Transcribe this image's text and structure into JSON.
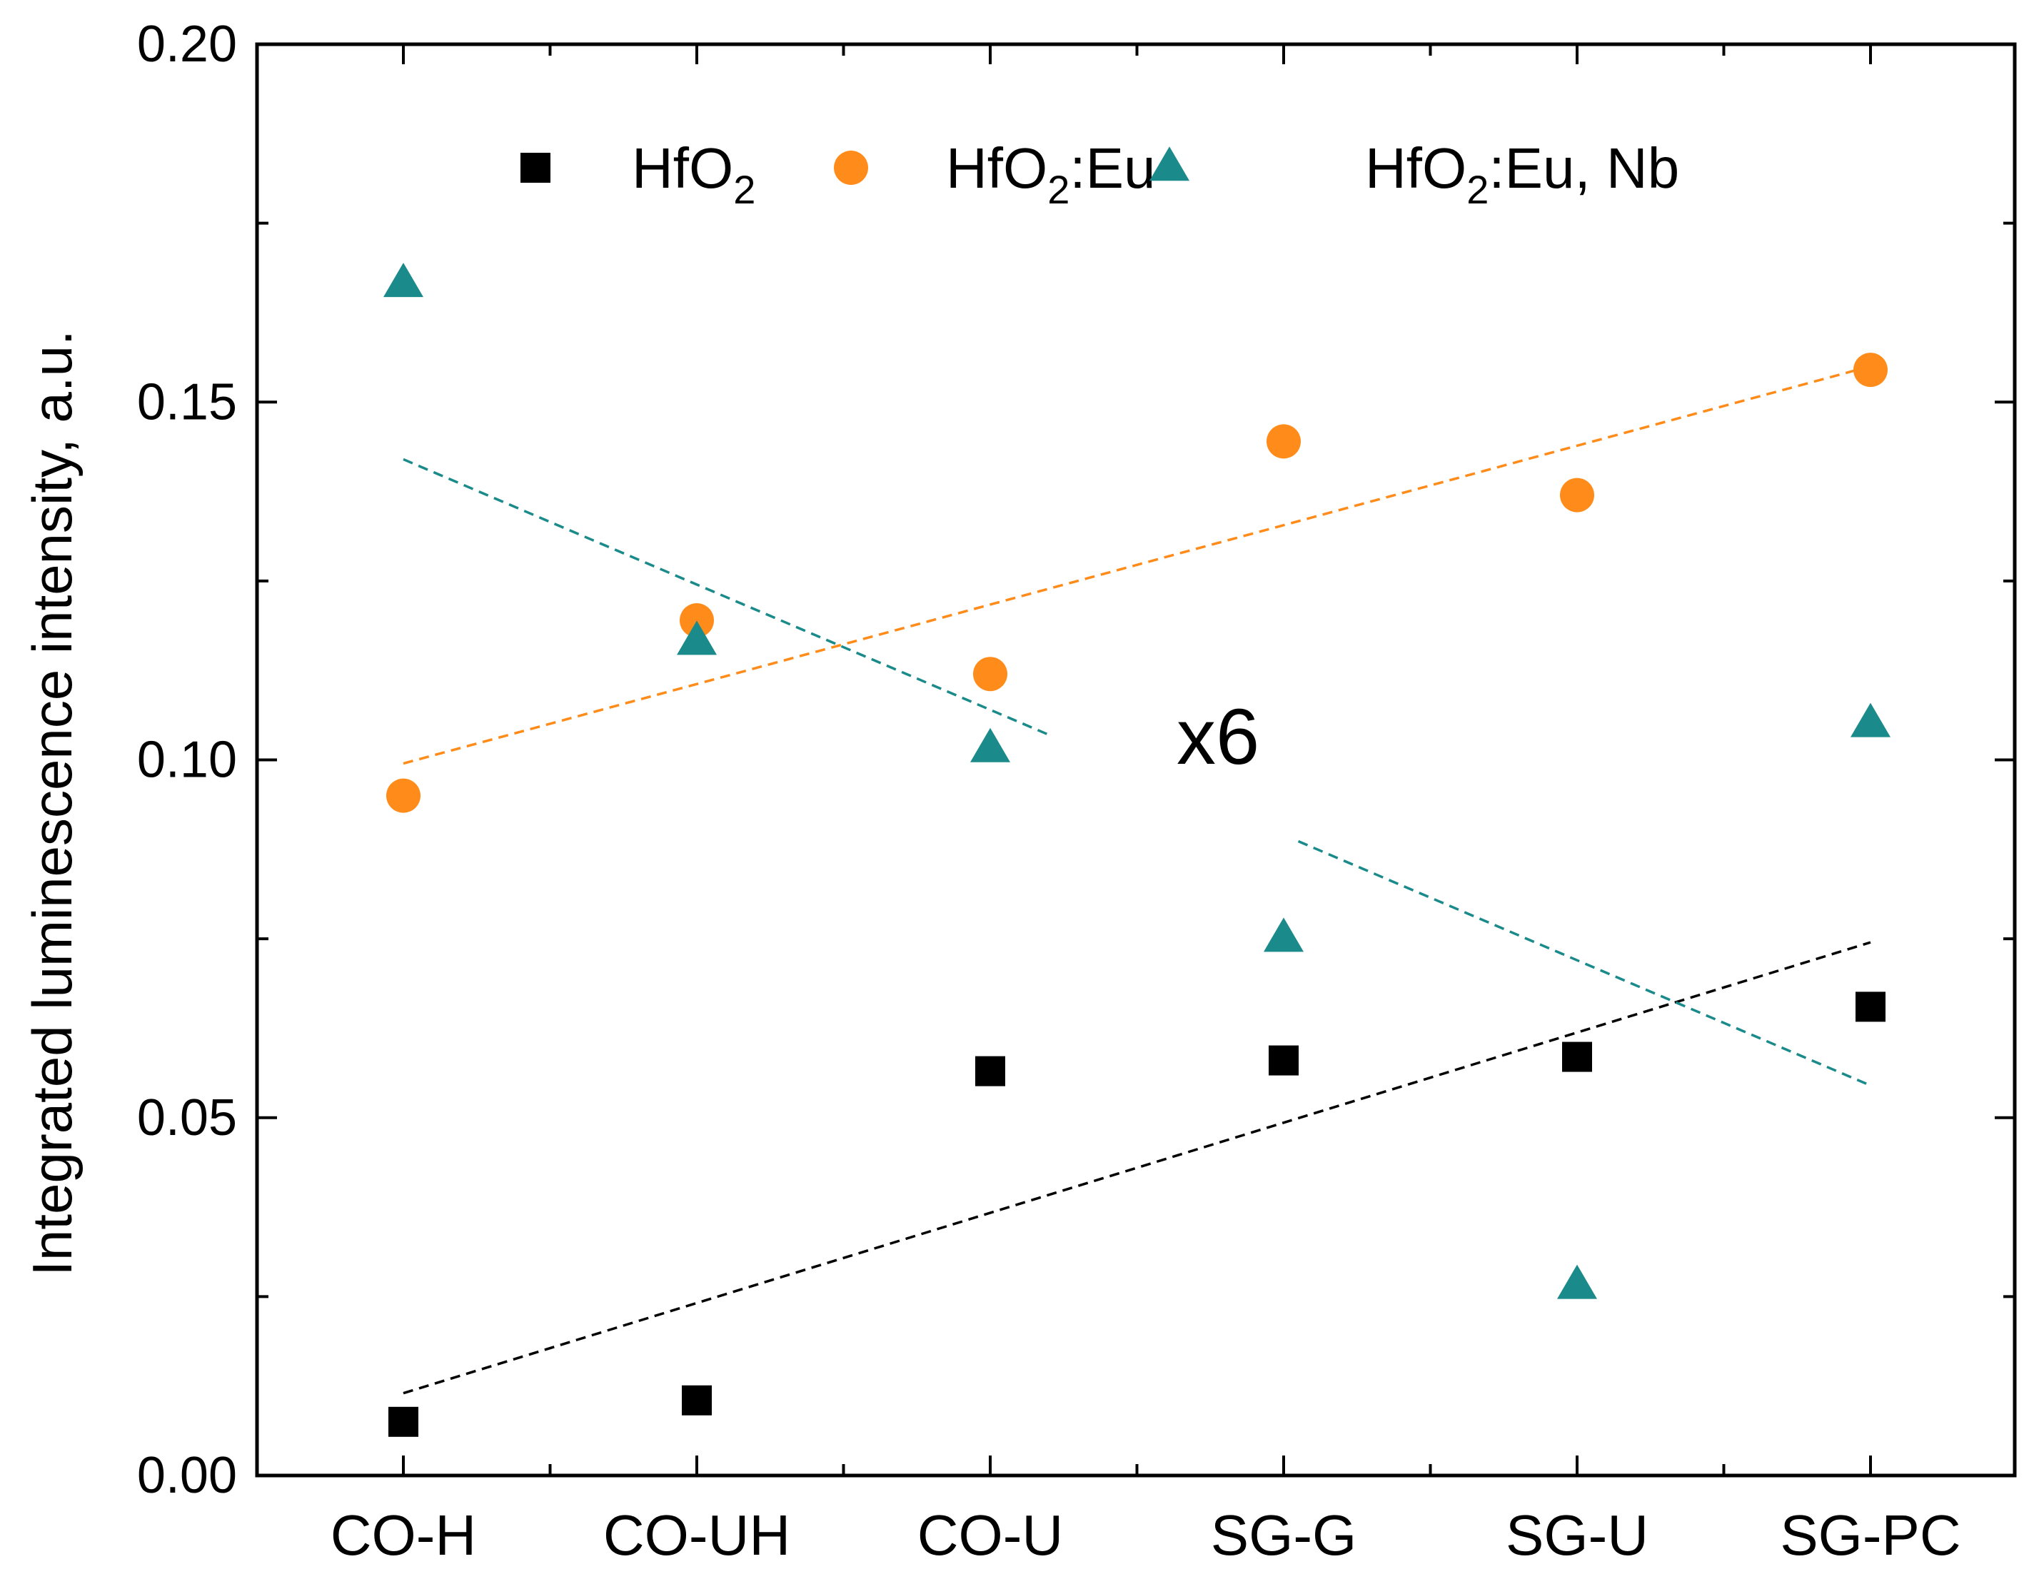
{
  "chart_data": {
    "type": "scatter",
    "title": "",
    "xlabel": "",
    "ylabel": "Integrated luminescence intensity, a.u.",
    "categories": [
      "CO-H",
      "CO-UH",
      "CO-U",
      "SG-G",
      "SG-U",
      "SG-PC"
    ],
    "ylim": [
      0,
      0.2
    ],
    "yticks": [
      {
        "value": 0.0,
        "label": "0.00"
      },
      {
        "value": 0.05,
        "label": "0.05"
      },
      {
        "value": 0.1,
        "label": "0.10"
      },
      {
        "value": 0.15,
        "label": "0.15"
      },
      {
        "value": 0.2,
        "label": "0.20"
      }
    ],
    "grid": false,
    "legend_position": "top",
    "annotation": "x6",
    "series": [
      {
        "name": "HfO2",
        "label_main": "HfO",
        "label_sub": "2",
        "label_tail": "",
        "marker": "square",
        "color": "#000000",
        "values": [
          0.0075,
          0.0105,
          0.0565,
          0.058,
          0.0585,
          0.0655
        ],
        "fit": [
          0.0115,
          0.0745
        ]
      },
      {
        "name": "HfO2:Eu",
        "label_main": "HfO",
        "label_sub": "2",
        "label_tail": ":Eu",
        "marker": "circle",
        "color": "#ff8c1a",
        "values": [
          0.095,
          0.1195,
          0.112,
          0.1445,
          0.137,
          0.1545
        ],
        "fit": [
          0.0995,
          0.155
        ]
      },
      {
        "name": "HfO2:Eu, Nb",
        "label_main": "HfO",
        "label_sub": "2",
        "label_tail": ":Eu, Nb",
        "marker": "triangle",
        "color": "#1a8a8a",
        "values": [
          0.1665,
          0.1165,
          0.1015,
          0.075,
          0.0265,
          0.105
        ],
        "fit": [
          0.142,
          0.0545
        ],
        "fit_gap": [
          0.44,
          0.61
        ]
      }
    ]
  }
}
